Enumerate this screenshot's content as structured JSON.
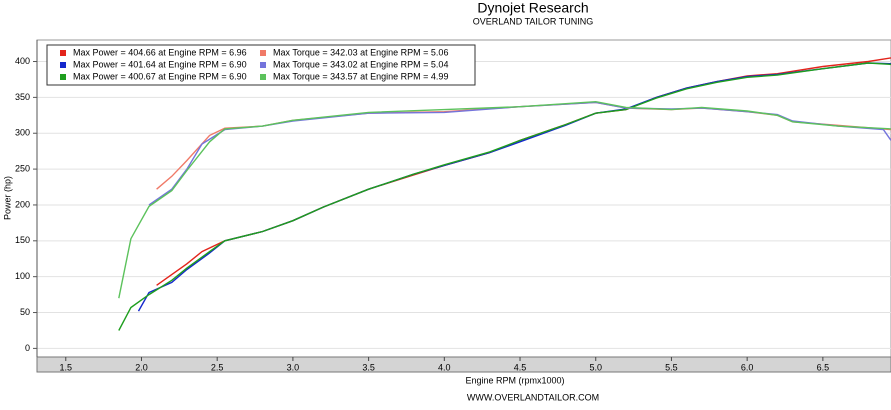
{
  "chart_data": {
    "type": "line",
    "title": "Dynojet Research",
    "subtitle": "OVERLAND TAILOR TUNING",
    "x_label": "Engine RPM (rpmx1000)",
    "y_label": "Power (hp)",
    "footer": "WWW.OVERLANDTAILOR.COM",
    "xlim": [
      1.31,
      6.95
    ],
    "ylim": [
      -12,
      430
    ],
    "xticks": [
      1.5,
      {
        "value": 2,
        "label": "2.0"
      },
      2.5,
      {
        "value": 3,
        "label": "3.0"
      },
      3.5,
      {
        "value": 4,
        "label": "4.0"
      },
      4.5,
      {
        "value": 5,
        "label": "5.0"
      },
      5.5,
      {
        "value": 6,
        "label": "6.0"
      },
      6.5
    ],
    "yticks": [
      0,
      50,
      100,
      150,
      200,
      250,
      300,
      350,
      400
    ],
    "grid": true,
    "legend": "top-left",
    "series": [
      {
        "name": "Max Power = 404.66 at Engine RPM = 6.96",
        "color": "#e3241b",
        "x": [
          2.1,
          2.3,
          2.4,
          2.55,
          2.8,
          3.0,
          3.2,
          3.5,
          3.8,
          4.0,
          4.3,
          4.5,
          4.8,
          5.0,
          5.2,
          5.4,
          5.6,
          5.8,
          6.0,
          6.2,
          6.5,
          6.8,
          6.95
        ],
        "values": [
          88,
          118,
          135,
          150,
          163,
          178,
          197,
          222,
          242,
          255,
          273,
          290,
          312,
          328,
          333,
          350,
          363,
          372,
          380,
          383,
          393,
          400,
          405
        ]
      },
      {
        "name": "Max Power = 401.64 at Engine RPM = 6.90",
        "color": "#1428cc",
        "x": [
          1.98,
          2.05,
          2.2,
          2.3,
          2.45,
          2.55,
          2.8,
          3.0,
          3.2,
          3.5,
          3.8,
          4.0,
          4.3,
          4.5,
          4.8,
          5.0,
          5.2,
          5.4,
          5.6,
          5.8,
          6.0,
          6.2,
          6.5,
          6.8,
          6.95
        ],
        "values": [
          52,
          78,
          92,
          110,
          133,
          150,
          163,
          178,
          197,
          222,
          243,
          255,
          273,
          288,
          311,
          328,
          334,
          350,
          363,
          372,
          379,
          382,
          390,
          398,
          397
        ]
      },
      {
        "name": "Max Power = 400.67 at Engine RPM = 6.90",
        "color": "#1e9e1e",
        "x": [
          1.85,
          1.93,
          2.05,
          2.2,
          2.3,
          2.45,
          2.55,
          2.8,
          3.0,
          3.2,
          3.5,
          3.8,
          4.0,
          4.3,
          4.5,
          4.8,
          5.0,
          5.2,
          5.4,
          5.6,
          5.8,
          6.0,
          6.2,
          6.5,
          6.8,
          6.95
        ],
        "values": [
          25,
          57,
          75,
          95,
          112,
          135,
          150,
          163,
          178,
          197,
          222,
          243,
          256,
          274,
          290,
          312,
          328,
          333,
          349,
          362,
          371,
          378,
          381,
          390,
          398,
          396
        ]
      },
      {
        "name": "Max Torque = 342.03 at Engine RPM = 5.06",
        "color": "#f07a68",
        "x": [
          2.1,
          2.2,
          2.3,
          2.45,
          2.55,
          2.8,
          3.0,
          3.5,
          4.0,
          4.5,
          5.0,
          5.2,
          5.5,
          5.7,
          6.0,
          6.2,
          6.3,
          6.6,
          6.95
        ],
        "values": [
          222,
          240,
          262,
          297,
          307,
          310,
          318,
          328,
          330,
          337,
          343,
          335,
          333,
          335,
          330,
          325,
          316,
          311,
          305
        ]
      },
      {
        "name": "Max Torque = 343.02 at Engine RPM = 5.04",
        "color": "#7474dc",
        "x": [
          2.05,
          2.2,
          2.3,
          2.4,
          2.55,
          2.8,
          3.0,
          3.5,
          4.0,
          4.5,
          5.0,
          5.2,
          5.5,
          5.7,
          6.0,
          6.2,
          6.3,
          6.6,
          6.9,
          6.95
        ],
        "values": [
          200,
          222,
          250,
          285,
          305,
          310,
          317,
          328,
          329,
          337,
          343,
          335,
          334,
          335,
          330,
          326,
          317,
          310,
          305,
          290
        ]
      },
      {
        "name": "Max Torque = 343.57 at Engine RPM = 4.99",
        "color": "#5cc25c",
        "x": [
          1.85,
          1.93,
          2.05,
          2.2,
          2.3,
          2.45,
          2.55,
          2.8,
          3.0,
          3.5,
          4.0,
          4.5,
          5.0,
          5.2,
          5.5,
          5.7,
          6.0,
          6.2,
          6.3,
          6.6,
          6.95
        ],
        "values": [
          70,
          153,
          198,
          220,
          248,
          288,
          306,
          310,
          318,
          329,
          333,
          337,
          344,
          336,
          333,
          336,
          331,
          325,
          316,
          310,
          306
        ]
      }
    ]
  }
}
